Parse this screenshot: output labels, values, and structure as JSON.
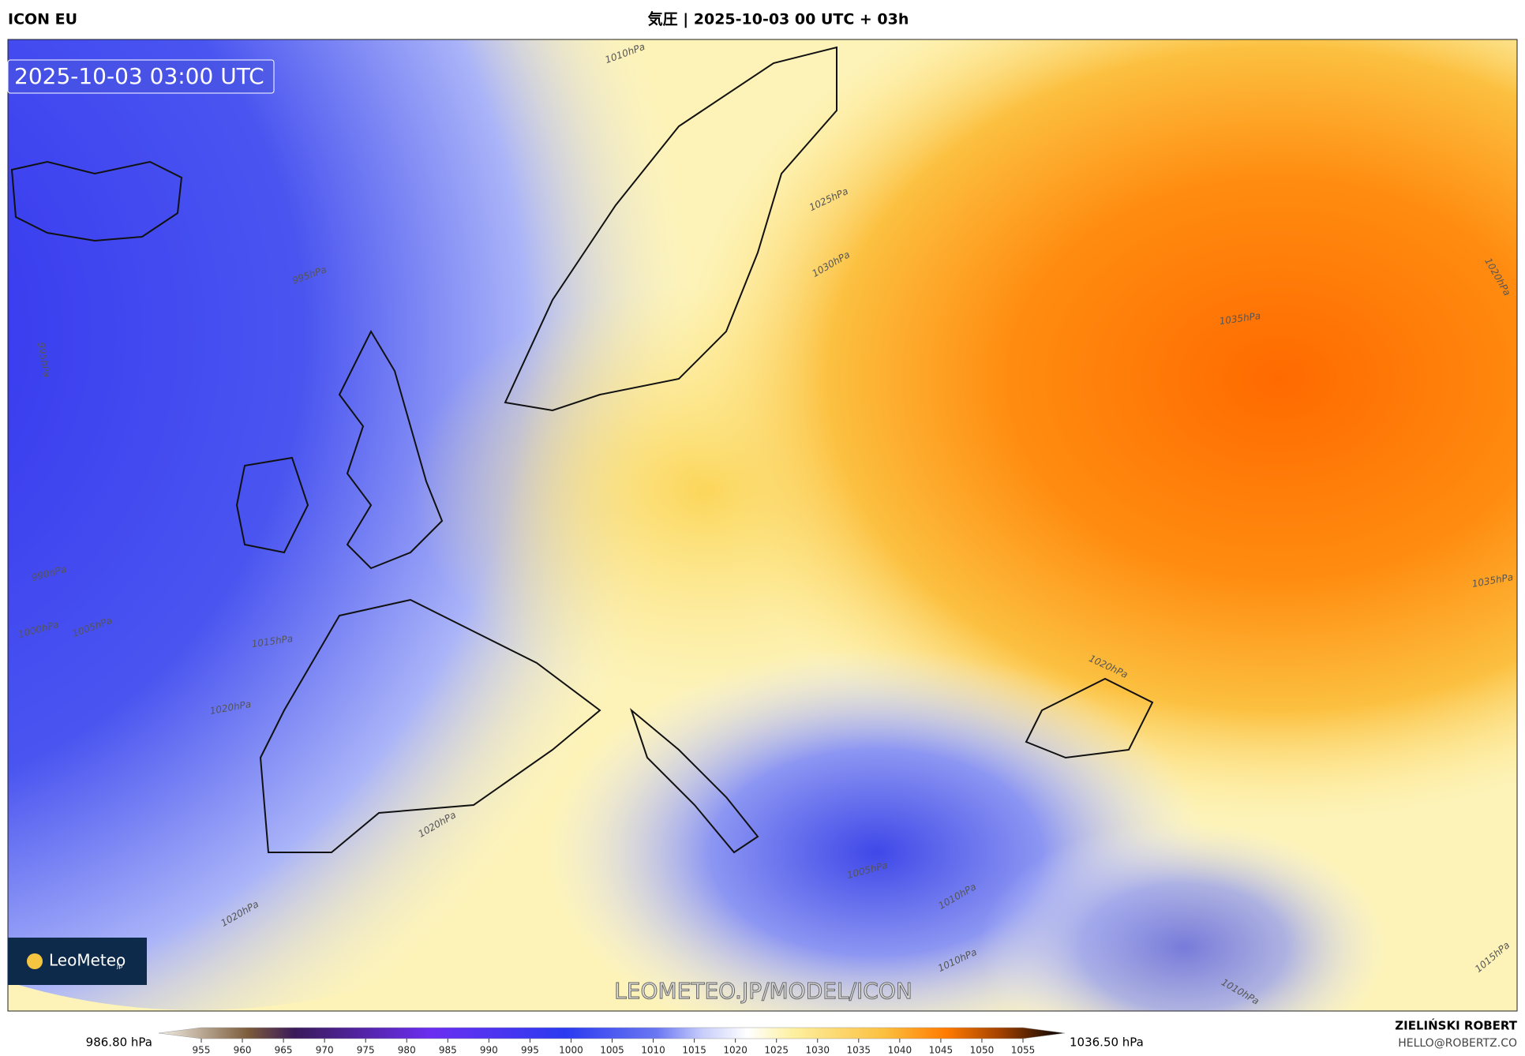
{
  "header": {
    "model": "ICON EU",
    "title": "気圧 | 2025-10-03 00 UTC + 03h"
  },
  "map": {
    "timestamp": "2025-10-03 03:00 UTC",
    "watermark": "LEOMETEO.JP/MODEL/ICON",
    "logo": {
      "name": "LeoMeteo",
      "suffix": "jp"
    },
    "contour_labels": [
      "1010hPa",
      "995hPa",
      "995hPa",
      "990hPa",
      "1000hPa",
      "1005hPa",
      "1015hPa",
      "1020hPa",
      "1025hPa",
      "1030hPa",
      "1035hPa",
      "1035hPa",
      "1020hPa",
      "1020hPa",
      "1020hPa",
      "1020hPa",
      "1005hPa",
      "1010hPa",
      "1010hPa",
      "1015hPa",
      "1010hPa"
    ]
  },
  "colorbar": {
    "min_label": "986.80 hPa",
    "max_label": "1036.50 hPa",
    "ticks": [
      955,
      960,
      965,
      970,
      975,
      980,
      985,
      990,
      995,
      1000,
      1005,
      1010,
      1015,
      1020,
      1025,
      1030,
      1035,
      1040,
      1045,
      1050,
      1055
    ]
  },
  "footer": {
    "author": "ZIELIŃSKI ROBERT",
    "email": "HELLO@ROBERTZ.CO"
  }
}
